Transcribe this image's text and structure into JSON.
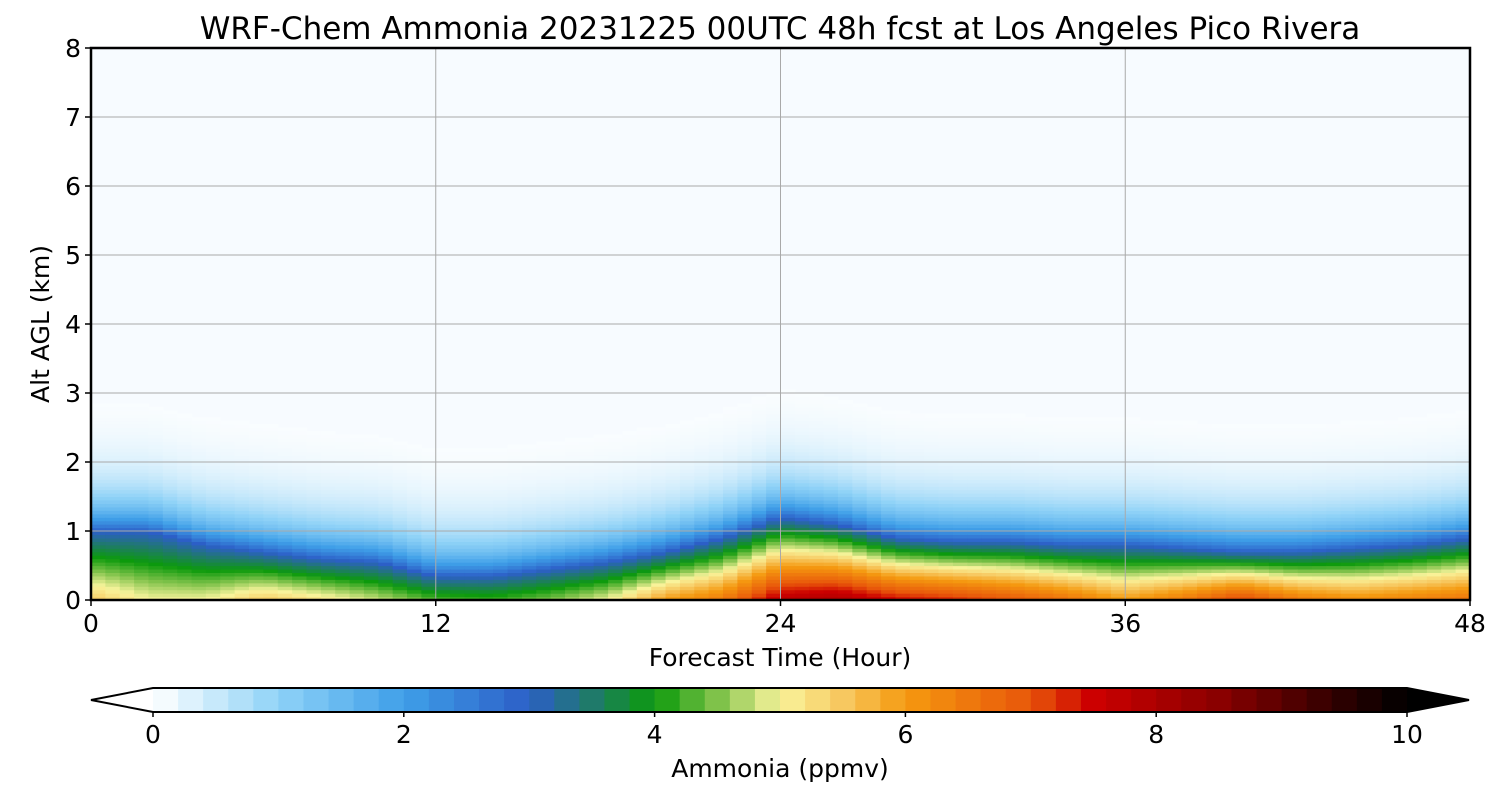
{
  "chart_data": {
    "type": "heatmap",
    "title": "WRF-Chem Ammonia  20231225 00UTC 48h fcst at Los Angeles Pico Rivera",
    "xlabel": "Forecast Time (Hour)",
    "ylabel": "Alt AGL (km)",
    "xlim": [
      0,
      48
    ],
    "ylim": [
      0,
      8
    ],
    "xticks": [
      "0",
      "12",
      "24",
      "36",
      "48"
    ],
    "yticks": [
      "0",
      "1",
      "2",
      "3",
      "4",
      "5",
      "6",
      "7",
      "8"
    ],
    "grid": true,
    "colorbar": {
      "label": "Ammonia  (ppmv)",
      "range": [
        0,
        10
      ],
      "ticks": [
        "0",
        "2",
        "4",
        "6",
        "8",
        "10"
      ],
      "extend": "both",
      "stops": [
        {
          "v": 0,
          "c": "#ffffff"
        },
        {
          "v": 1,
          "c": "#8fd2f7"
        },
        {
          "v": 2,
          "c": "#3f9fe8"
        },
        {
          "v": 3,
          "c": "#2c5fc7"
        },
        {
          "v": 3.5,
          "c": "#1f7a6a"
        },
        {
          "v": 4,
          "c": "#0c9a0c"
        },
        {
          "v": 4.5,
          "c": "#7fc24a"
        },
        {
          "v": 5,
          "c": "#f9f49c"
        },
        {
          "v": 5.5,
          "c": "#f7c860"
        },
        {
          "v": 6,
          "c": "#f59a10"
        },
        {
          "v": 7,
          "c": "#e8560a"
        },
        {
          "v": 7.5,
          "c": "#cc0000"
        },
        {
          "v": 8.5,
          "c": "#8a0000"
        },
        {
          "v": 9.5,
          "c": "#2a0000"
        },
        {
          "v": 10,
          "c": "#000000"
        }
      ]
    },
    "hours": [
      0,
      2,
      4,
      6,
      8,
      10,
      12,
      14,
      16,
      18,
      20,
      22,
      24,
      26,
      28,
      30,
      32,
      34,
      36,
      38,
      40,
      42,
      44,
      46,
      48
    ],
    "boundary_layer_top_km": [
      1.0,
      1.0,
      0.8,
      0.7,
      0.6,
      0.55,
      0.35,
      0.35,
      0.45,
      0.55,
      0.7,
      0.9,
      1.2,
      1.1,
      0.9,
      0.85,
      0.85,
      0.8,
      0.8,
      0.75,
      0.7,
      0.7,
      0.75,
      0.8,
      0.9
    ],
    "surface_ppmv": [
      5.5,
      5.0,
      5.0,
      5.5,
      5.2,
      4.8,
      4.3,
      4.2,
      4.5,
      5.0,
      6.0,
      6.5,
      7.8,
      8.0,
      7.5,
      7.3,
      7.0,
      6.6,
      6.0,
      6.5,
      7.2,
      6.5,
      6.2,
      6.4,
      6.6
    ],
    "plume_top_ppmv": 0.0
  }
}
